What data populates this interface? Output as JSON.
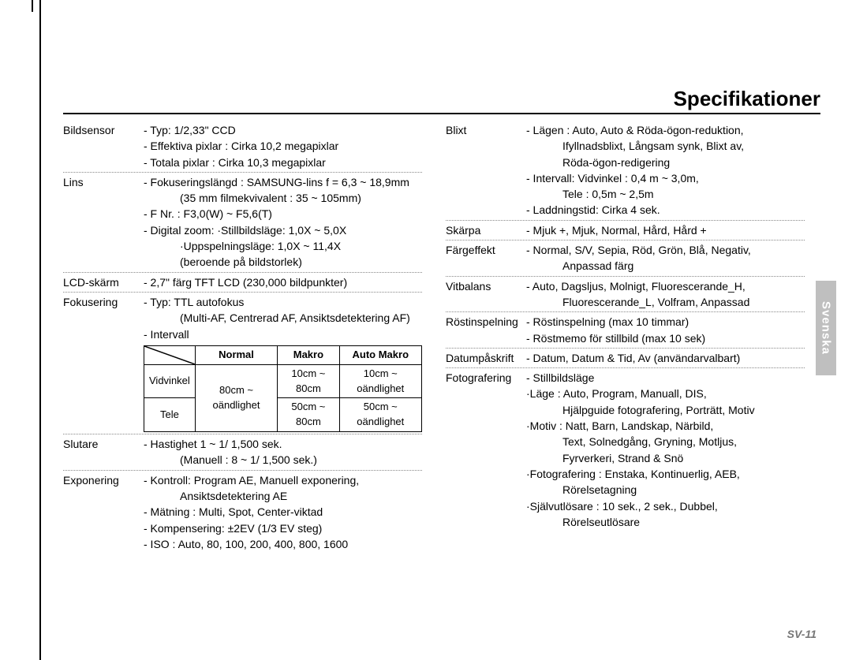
{
  "page": {
    "title": "Specifikationer",
    "language_tab": "Svenska",
    "page_number": "SV-11"
  },
  "left": [
    {
      "label": "Bildsensor",
      "lines": [
        "- Typ: 1/2,33\" CCD",
        "- Effektiva pixlar : Cirka 10,2 megapixlar",
        "- Totala pixlar : Cirka 10,3 megapixlar"
      ]
    },
    {
      "label": "Lins",
      "lines": [
        "- Fokuseringslängd : SAMSUNG-lins f = 6,3 ~ 18,9mm",
        "  (35 mm filmekvivalent : 35 ~ 105mm)",
        "- F Nr. : F3,0(W) ~ F5,6(T)",
        "- Digital zoom: ·Stillbildsläge: 1,0X ~ 5,0X",
        "  ·Uppspelningsläge: 1,0X ~ 11,4X",
        "  (beroende på bildstorlek)"
      ]
    },
    {
      "label": "LCD-skärm",
      "lines": [
        "- 2,7\" färg TFT LCD (230,000 bildpunkter)"
      ]
    },
    {
      "label": "Fokusering",
      "lines": [
        "- Typ: TTL autofokus",
        "  (Multi-AF, Centrerad AF, Ansiktsdetektering AF)",
        "- Intervall"
      ],
      "table": {
        "headers": [
          "",
          "Normal",
          "Makro",
          "Auto Makro"
        ],
        "rows": [
          [
            "Vidvinkel",
            "80cm ~ oändlighet",
            "10cm ~ 80cm",
            "10cm ~ oändlighet"
          ],
          [
            "Tele",
            "",
            "50cm ~ 80cm",
            "50cm ~ oändlighet"
          ]
        ],
        "normal_rowspan": true
      }
    },
    {
      "label": "Slutare",
      "lines": [
        "- Hastighet 1 ~ 1/ 1,500 sek.",
        "  (Manuell : 8 ~ 1/ 1,500 sek.)"
      ]
    },
    {
      "label": "Exponering",
      "lines": [
        "- Kontroll: Program AE, Manuell exponering,",
        "  Ansiktsdetektering AE",
        "- Mätning : Multi, Spot, Center-viktad",
        "- Kompensering: ±2EV (1/3 EV steg)",
        "- ISO : Auto, 80, 100, 200, 400, 800, 1600"
      ],
      "noline": true
    }
  ],
  "right": [
    {
      "label": "Blixt",
      "lines": [
        "- Lägen : Auto, Auto & Röda-ögon-reduktion,",
        "  Ifyllnadsblixt, Långsam synk, Blixt av,",
        "  Röda-ögon-redigering",
        "- Intervall: Vidvinkel : 0,4 m ~ 3,0m,",
        "  Tele : 0,5m ~ 2,5m",
        "- Laddningstid: Cirka 4 sek."
      ]
    },
    {
      "label": "Skärpa",
      "lines": [
        "- Mjuk +, Mjuk, Normal, Hård, Hård +"
      ]
    },
    {
      "label": "Färgeffekt",
      "lines": [
        "- Normal, S/V, Sepia, Röd, Grön, Blå, Negativ,",
        "  Anpassad färg"
      ]
    },
    {
      "label": "Vitbalans",
      "lines": [
        "- Auto, Dagsljus, Molnigt, Fluorescerande_H,",
        "  Fluorescerande_L, Volfram, Anpassad"
      ]
    },
    {
      "label": "Röstinspelning",
      "lines": [
        "- Röstinspelning (max 10 timmar)",
        "- Röstmemo för stillbild (max 10 sek)"
      ]
    },
    {
      "label": "Datumpåskrift",
      "lines": [
        "- Datum, Datum & Tid, Av (användarvalbart)"
      ]
    },
    {
      "label": "Fotografering",
      "lines": [
        "- Stillbildsläge",
        " ·Läge : Auto, Program, Manuall, DIS,",
        "  Hjälpguide fotografering, Porträtt, Motiv",
        " ·Motiv : Natt, Barn, Landskap, Närbild,",
        "  Text, Solnedgång, Gryning, Motljus,",
        "  Fyrverkeri, Strand & Snö",
        " ·Fotografering : Enstaka, Kontinuerlig, AEB,",
        "  Rörelsetagning",
        " ·Självutlösare : 10 sek., 2 sek., Dubbel,",
        "  Rörelseutlösare"
      ],
      "noline": true
    }
  ]
}
